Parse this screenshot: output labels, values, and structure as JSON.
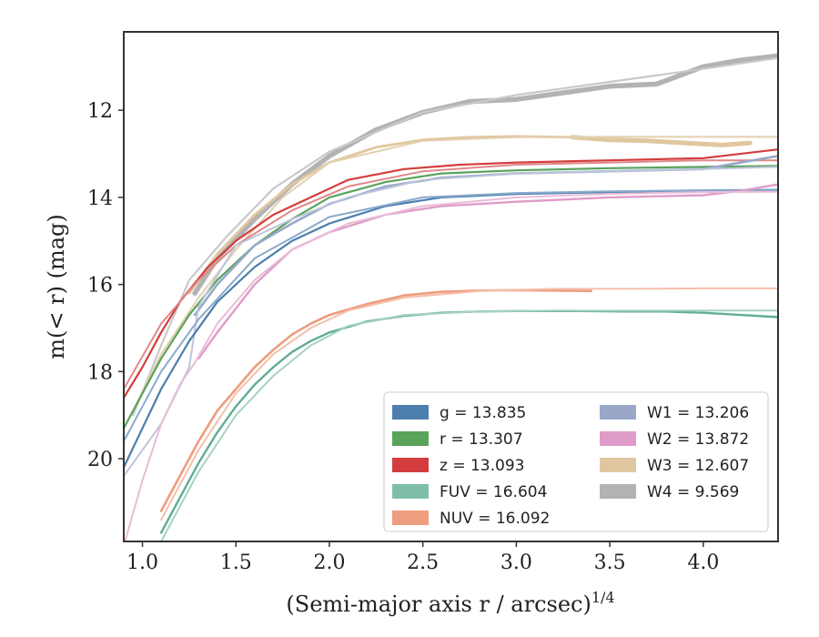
{
  "chart_data": {
    "type": "line",
    "xlabel": "(Semi-major axis r / arcsec)",
    "xlabel_sup": "1/4",
    "ylabel": "m(< r) (mag)",
    "xlim": [
      0.9,
      4.4
    ],
    "ylim": [
      21.9,
      10.2
    ],
    "y_inverted": true,
    "x_ticks": [
      "1.0",
      "1.5",
      "2.0",
      "2.5",
      "3.0",
      "3.5",
      "4.0"
    ],
    "y_ticks": [
      "12",
      "14",
      "16",
      "18",
      "20"
    ],
    "grid": false,
    "legend_placement": "lower-right",
    "legend_entries": [
      {
        "label": "g = 13.835",
        "color": "#4c7fad"
      },
      {
        "label": "r = 13.307",
        "color": "#59a35b"
      },
      {
        "label": "z = 13.093",
        "color": "#d43d3d"
      },
      {
        "label": "FUV = 16.604",
        "color": "#7fbfaa"
      },
      {
        "label": "NUV = 16.092",
        "color": "#ee9d7e"
      },
      {
        "label": "W1 = 13.206",
        "color": "#99a8c9"
      },
      {
        "label": "W2 = 13.872",
        "color": "#df9cc8"
      },
      {
        "label": "W3 = 12.607",
        "color": "#e1c7a0"
      },
      {
        "label": "W4 = 9.569",
        "color": "#b3b3b3"
      }
    ],
    "series": [
      {
        "name": "W4 = 9.569",
        "color": "#b3b3b3",
        "lw": 5.5,
        "x": [
          1.28,
          1.4,
          1.6,
          1.8,
          2.0,
          2.25,
          2.5,
          2.75,
          3.0,
          3.25,
          3.5,
          3.75,
          4.0,
          4.2,
          4.4
        ],
        "y": [
          16.2,
          15.4,
          14.5,
          13.7,
          13.05,
          12.45,
          12.05,
          11.8,
          11.75,
          11.6,
          11.45,
          11.4,
          11.0,
          10.85,
          10.75
        ]
      },
      {
        "name": "W4 = 9.569",
        "color": "#c9c9c9",
        "lw": 2.2,
        "x": [
          0.95,
          1.1,
          1.25,
          1.45,
          1.7,
          2.0,
          2.5,
          3.0,
          3.5,
          4.0,
          4.4
        ],
        "y": [
          19.0,
          17.4,
          15.9,
          14.9,
          13.8,
          12.95,
          12.05,
          11.65,
          11.35,
          11.05,
          10.8
        ]
      },
      {
        "name": "W3 = 12.607",
        "color": "#e1c7a0",
        "lw": 5.0,
        "x": [
          3.3,
          3.5,
          3.7,
          3.9,
          4.1,
          4.25
        ],
        "y": [
          12.62,
          12.68,
          12.7,
          12.75,
          12.8,
          12.75
        ]
      },
      {
        "name": "W3 = 12.607",
        "color": "#e1c7a0",
        "lw": 2.8,
        "x": [
          1.25,
          1.4,
          1.6,
          1.8,
          2.0,
          2.25,
          2.5,
          2.75,
          3.0,
          3.3
        ],
        "y": [
          16.2,
          15.3,
          14.4,
          13.7,
          13.2,
          12.85,
          12.68,
          12.62,
          12.6,
          12.62
        ]
      },
      {
        "name": "W3 = 12.607",
        "color": "#e3d0b0",
        "lw": 2.0,
        "x": [
          0.95,
          1.1,
          1.3,
          1.5,
          1.75,
          2.0,
          2.5,
          3.0,
          3.5,
          4.0,
          4.4
        ],
        "y": [
          18.9,
          17.6,
          16.3,
          15.2,
          14.0,
          13.2,
          12.7,
          12.62,
          12.61,
          12.61,
          12.61
        ]
      },
      {
        "name": "z = 13.093",
        "color": "#d43d3d",
        "lw": 2.2,
        "x": [
          0.9,
          1.0,
          1.1,
          1.2,
          1.35,
          1.5,
          1.7,
          1.9,
          2.1,
          2.4,
          2.7,
          3.0,
          3.5,
          4.0,
          4.4
        ],
        "y": [
          18.6,
          17.9,
          17.1,
          16.4,
          15.6,
          15.0,
          14.4,
          14.0,
          13.6,
          13.35,
          13.25,
          13.2,
          13.15,
          13.1,
          12.9
        ]
      },
      {
        "name": "z = 13.093",
        "color": "#e08888",
        "lw": 2.0,
        "x": [
          0.9,
          1.1,
          1.3,
          1.5,
          1.8,
          2.1,
          2.5,
          3.0,
          3.5,
          4.0,
          4.4
        ],
        "y": [
          18.4,
          16.9,
          15.9,
          15.1,
          14.3,
          13.75,
          13.4,
          13.25,
          13.2,
          13.15,
          13.15
        ]
      },
      {
        "name": "r = 13.307",
        "color": "#59a35b",
        "lw": 2.2,
        "x": [
          0.9,
          1.0,
          1.1,
          1.25,
          1.4,
          1.6,
          1.8,
          2.0,
          2.3,
          2.6,
          3.0,
          3.5,
          4.0,
          4.4
        ],
        "y": [
          19.3,
          18.5,
          17.7,
          16.7,
          15.9,
          15.1,
          14.5,
          14.0,
          13.65,
          13.45,
          13.38,
          13.33,
          13.3,
          13.28
        ]
      },
      {
        "name": "W1 = 13.206",
        "color": "#99a8c9",
        "lw": 2.6,
        "x": [
          1.28,
          1.4,
          1.6,
          1.8,
          2.0,
          2.3,
          2.6,
          3.0,
          3.5,
          4.0,
          4.4
        ],
        "y": [
          16.7,
          16.0,
          15.1,
          14.6,
          14.15,
          13.75,
          13.55,
          13.45,
          13.4,
          13.35,
          13.05
        ]
      },
      {
        "name": "W1 = 13.206",
        "color": "#bcc6da",
        "lw": 2.0,
        "x": [
          0.9,
          1.1,
          1.25,
          1.3,
          1.5,
          1.8,
          2.1,
          2.5,
          3.0,
          3.5,
          4.0,
          4.4
        ],
        "y": [
          20.4,
          19.2,
          17.9,
          16.5,
          15.1,
          14.5,
          14.0,
          13.6,
          13.45,
          13.4,
          13.35,
          13.3
        ]
      },
      {
        "name": "g = 13.835",
        "color": "#4c7fad",
        "lw": 2.2,
        "x": [
          0.9,
          1.0,
          1.1,
          1.25,
          1.4,
          1.6,
          1.8,
          2.0,
          2.3,
          2.6,
          3.0,
          3.5,
          4.0,
          4.4
        ],
        "y": [
          20.2,
          19.3,
          18.4,
          17.3,
          16.4,
          15.6,
          15.0,
          14.6,
          14.2,
          14.0,
          13.92,
          13.88,
          13.84,
          13.83
        ]
      },
      {
        "name": "g = 13.835",
        "color": "#8aaacb",
        "lw": 2.0,
        "x": [
          0.9,
          1.1,
          1.3,
          1.6,
          2.0,
          2.5,
          3.0,
          3.5,
          4.0,
          4.4
        ],
        "y": [
          19.6,
          18.0,
          16.8,
          15.4,
          14.45,
          14.0,
          13.9,
          13.86,
          13.84,
          13.84
        ]
      },
      {
        "name": "W2 = 13.872",
        "color": "#df9cc8",
        "lw": 2.4,
        "x": [
          1.3,
          1.4,
          1.6,
          1.8,
          2.0,
          2.3,
          2.6,
          3.0,
          3.5,
          4.0,
          4.2,
          4.4
        ],
        "y": [
          17.7,
          17.1,
          16.0,
          15.2,
          14.8,
          14.4,
          14.2,
          14.1,
          14.0,
          13.95,
          13.85,
          13.7
        ]
      },
      {
        "name": "W2 = 13.872",
        "color": "#e9bcd8",
        "lw": 2.0,
        "x": [
          0.9,
          1.0,
          1.1,
          1.2,
          1.28,
          1.4,
          1.6,
          1.8,
          2.1,
          2.5,
          3.0,
          3.5,
          4.0,
          4.4
        ],
        "y": [
          22.0,
          20.5,
          19.2,
          18.3,
          17.8,
          16.9,
          15.9,
          15.2,
          14.6,
          14.2,
          14.0,
          13.92,
          13.88,
          13.87
        ]
      },
      {
        "name": "NUV = 16.092",
        "color": "#ee9d7e",
        "lw": 2.6,
        "x": [
          1.1,
          1.2,
          1.3,
          1.4,
          1.5,
          1.6,
          1.7,
          1.8,
          1.9,
          2.0,
          2.2,
          2.4,
          2.6,
          2.8,
          3.0,
          3.2,
          3.4
        ],
        "y": [
          21.2,
          20.4,
          19.6,
          18.9,
          18.4,
          17.9,
          17.5,
          17.15,
          16.9,
          16.7,
          16.45,
          16.25,
          16.17,
          16.14,
          16.13,
          16.14,
          16.15
        ]
      },
      {
        "name": "NUV = 16.092",
        "color": "#f3c0ab",
        "lw": 2.0,
        "x": [
          1.1,
          1.3,
          1.5,
          1.7,
          1.9,
          2.1,
          2.4,
          2.8,
          3.2,
          3.6,
          4.0,
          4.4
        ],
        "y": [
          21.4,
          19.8,
          18.5,
          17.6,
          17.0,
          16.6,
          16.3,
          16.15,
          16.1,
          16.1,
          16.09,
          16.09
        ]
      },
      {
        "name": "FUV = 16.604",
        "color": "#60ad92",
        "lw": 2.4,
        "x": [
          1.1,
          1.2,
          1.3,
          1.4,
          1.5,
          1.6,
          1.7,
          1.8,
          1.9,
          2.0,
          2.2,
          2.4,
          2.6,
          2.8,
          3.0,
          3.3,
          3.6,
          3.8,
          4.0,
          4.2,
          4.4
        ],
        "y": [
          21.7,
          20.9,
          20.1,
          19.4,
          18.8,
          18.3,
          17.9,
          17.55,
          17.3,
          17.1,
          16.85,
          16.72,
          16.65,
          16.62,
          16.61,
          16.61,
          16.62,
          16.62,
          16.65,
          16.7,
          16.75
        ]
      },
      {
        "name": "FUV = 16.604",
        "color": "#a6d3c1",
        "lw": 2.0,
        "x": [
          1.1,
          1.3,
          1.5,
          1.7,
          1.9,
          2.1,
          2.4,
          2.8,
          3.2,
          3.6,
          4.0,
          4.4
        ],
        "y": [
          21.9,
          20.3,
          19.0,
          18.1,
          17.4,
          16.95,
          16.7,
          16.62,
          16.6,
          16.6,
          16.6,
          16.6
        ]
      }
    ]
  }
}
